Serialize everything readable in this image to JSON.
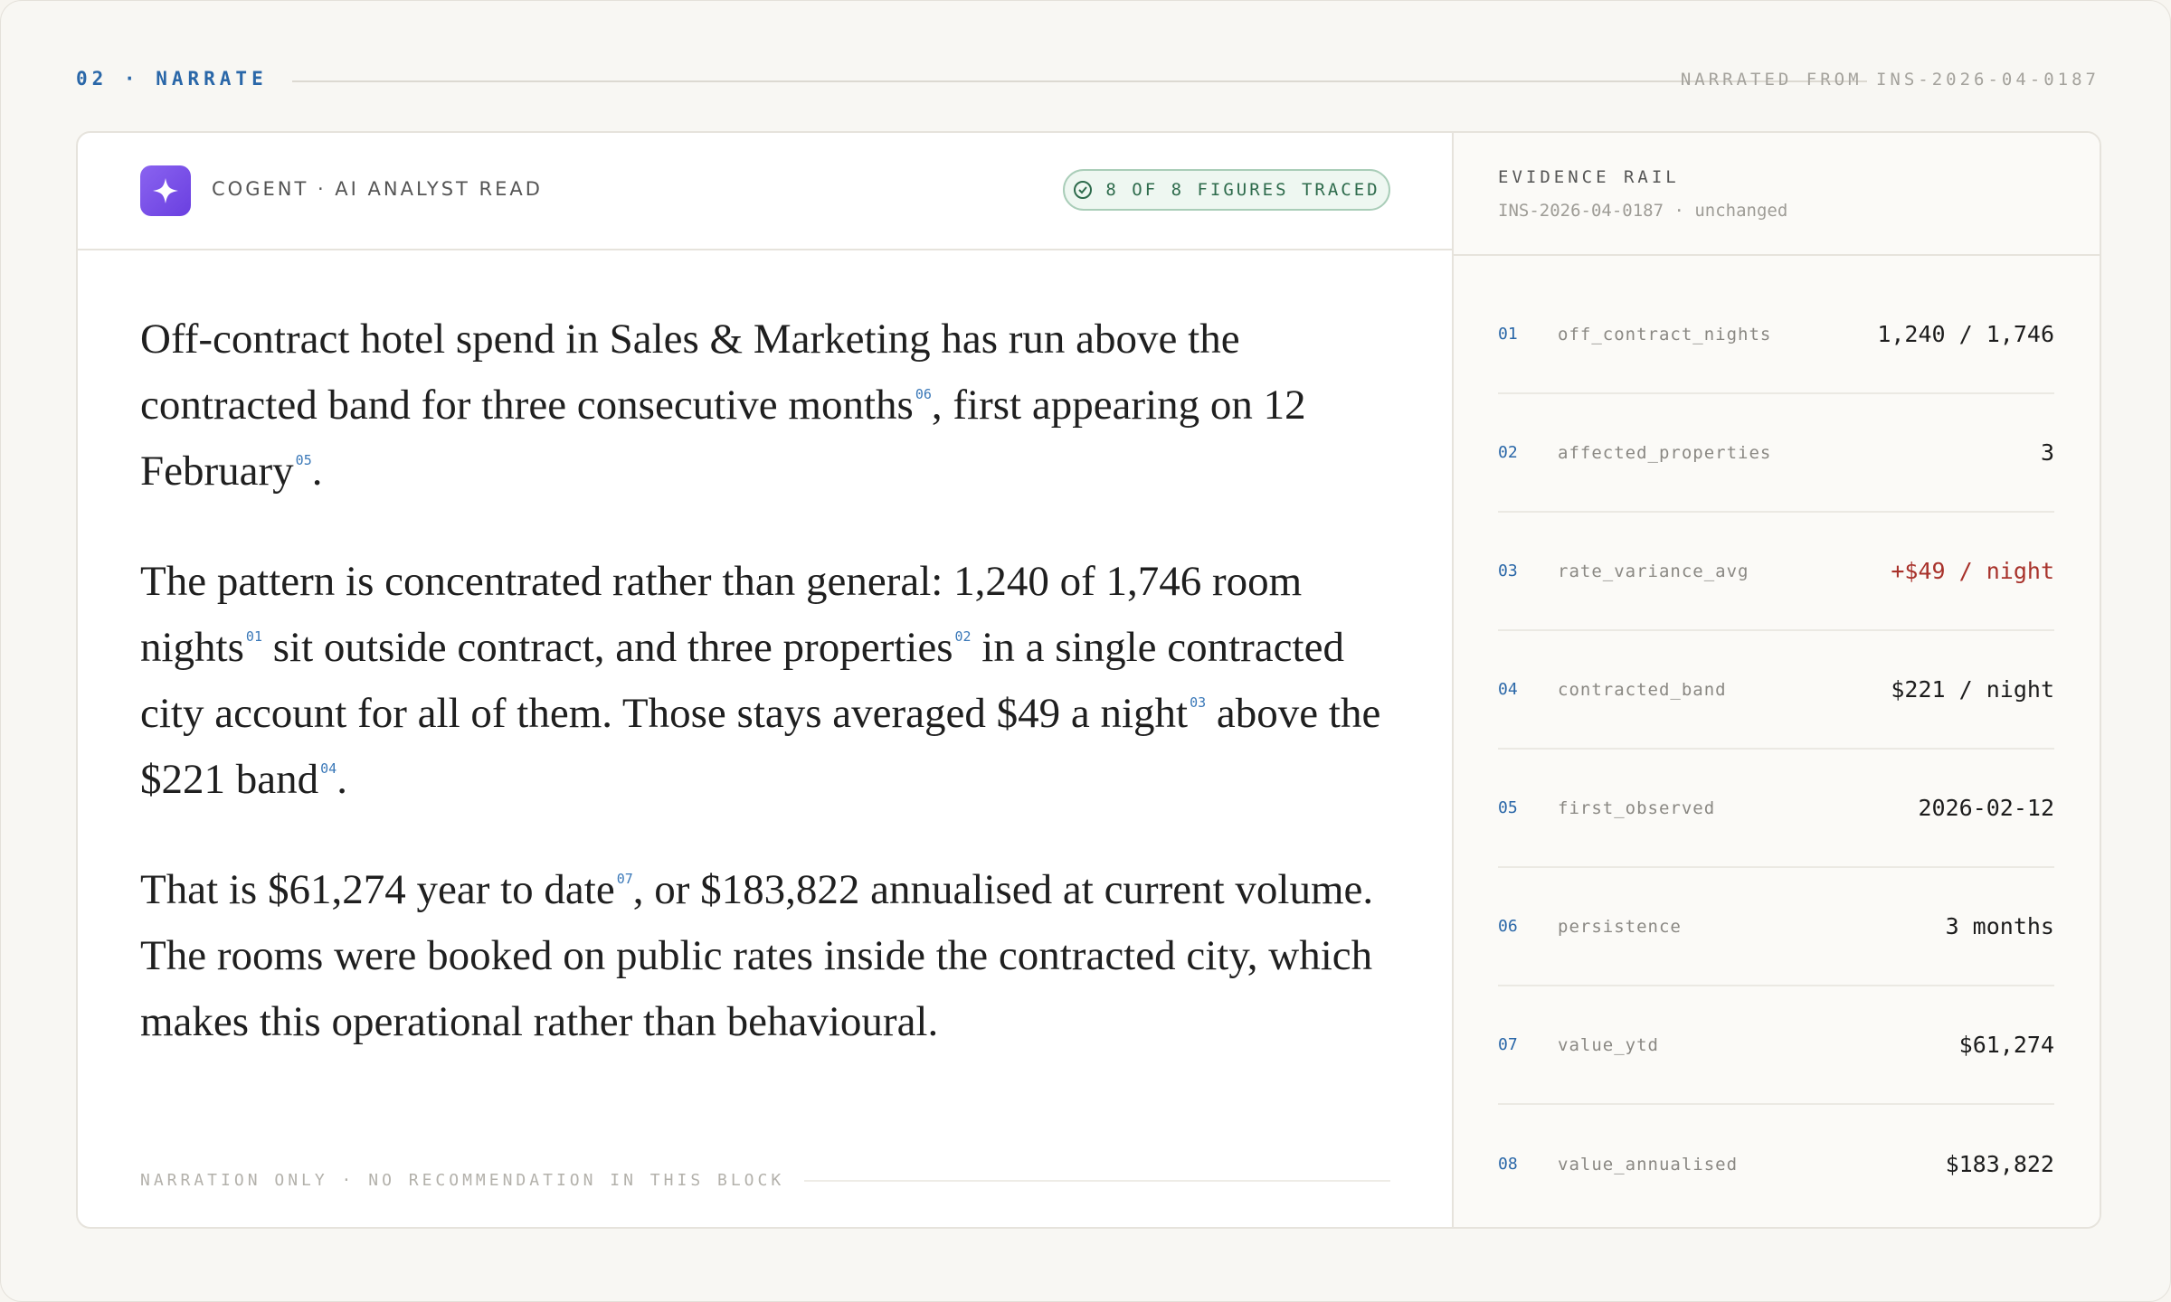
{
  "header": {
    "section": "02 · NARRATE",
    "source": "NARRATED FROM INS-2026-04-0187"
  },
  "card": {
    "brand": "COGENT · AI ANALYST READ",
    "badge": "8 OF 8 FIGURES TRACED",
    "paragraphs": [
      [
        {
          "text": "Off-contract hotel spend in Sales & Marketing has run above the contracted band for three consecutive months"
        },
        {
          "ref": "06"
        },
        {
          "text": ", first appearing on 12 February"
        },
        {
          "ref": "05"
        },
        {
          "text": "."
        }
      ],
      [
        {
          "text": "The pattern is concentrated rather than general: 1,240 of 1,746 room nights"
        },
        {
          "ref": "01"
        },
        {
          "text": " sit outside contract, and three properties"
        },
        {
          "ref": "02"
        },
        {
          "text": " in a single contracted city account for all of them. Those stays averaged $49 a night"
        },
        {
          "ref": "03"
        },
        {
          "text": " above the $221 band"
        },
        {
          "ref": "04"
        },
        {
          "text": "."
        }
      ],
      [
        {
          "text": "That is $61,274 year to date"
        },
        {
          "ref": "07"
        },
        {
          "text": ", or $183,822 annualised at current volume. The rooms were booked on public rates inside the contracted city, which makes this operational rather than behavioural."
        }
      ]
    ],
    "footnote": "NARRATION ONLY · NO RECOMMENDATION IN THIS BLOCK"
  },
  "rail": {
    "title": "EVIDENCE RAIL",
    "subtitle": "INS-2026-04-0187 · unchanged",
    "items": [
      {
        "num": "01",
        "key": "off_contract_nights",
        "value": "1,240 / 1,746"
      },
      {
        "num": "02",
        "key": "affected_properties",
        "value": "3"
      },
      {
        "num": "03",
        "key": "rate_variance_avg",
        "value": "+$49 / night",
        "color": "#a8322b"
      },
      {
        "num": "04",
        "key": "contracted_band",
        "value": "$221 / night"
      },
      {
        "num": "05",
        "key": "first_observed",
        "value": "2026-02-12"
      },
      {
        "num": "06",
        "key": "persistence",
        "value": "3 months"
      },
      {
        "num": "07",
        "key": "value_ytd",
        "value": "$61,274"
      },
      {
        "num": "08",
        "key": "value_annualised",
        "value": "$183,822"
      }
    ]
  }
}
